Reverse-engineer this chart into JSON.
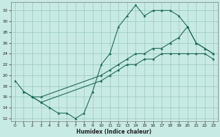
{
  "xlabel": "Humidex (Indice chaleur)",
  "bg_color": "#c8eae4",
  "grid_color": "#9dccc4",
  "line_color": "#1a6655",
  "xlim": [
    -0.5,
    23.5
  ],
  "ylim": [
    11.5,
    33.5
  ],
  "xticks": [
    0,
    1,
    2,
    3,
    4,
    5,
    6,
    7,
    8,
    9,
    10,
    11,
    12,
    13,
    14,
    15,
    16,
    17,
    18,
    19,
    20,
    21,
    22,
    23
  ],
  "yticks": [
    12,
    14,
    16,
    18,
    20,
    22,
    24,
    26,
    28,
    30,
    32
  ],
  "line1_x": [
    0,
    1,
    2,
    3,
    4,
    5,
    6,
    7,
    8,
    9,
    10,
    11,
    12,
    13,
    14,
    15,
    16,
    17,
    18,
    19,
    20,
    21,
    22,
    23
  ],
  "line1_y": [
    19,
    17,
    16,
    15,
    14,
    13,
    13,
    12,
    13,
    17,
    22,
    24,
    29,
    31,
    33,
    31,
    32,
    32,
    32,
    31,
    29,
    26,
    25,
    24
  ],
  "line2_x": [
    1,
    2,
    3,
    10,
    11,
    12,
    13,
    14,
    15,
    16,
    17,
    18,
    19,
    20,
    21,
    22,
    23
  ],
  "line2_y": [
    17,
    16,
    16,
    20,
    21,
    22,
    23,
    24,
    24,
    25,
    25,
    26,
    27,
    29,
    26,
    25,
    24
  ],
  "line3_x": [
    2,
    3,
    10,
    11,
    12,
    13,
    14,
    15,
    16,
    17,
    18,
    19,
    20,
    21,
    22,
    23
  ],
  "line3_y": [
    16,
    15,
    19,
    20,
    21,
    22,
    22,
    23,
    23,
    24,
    24,
    24,
    24,
    24,
    24,
    23
  ]
}
